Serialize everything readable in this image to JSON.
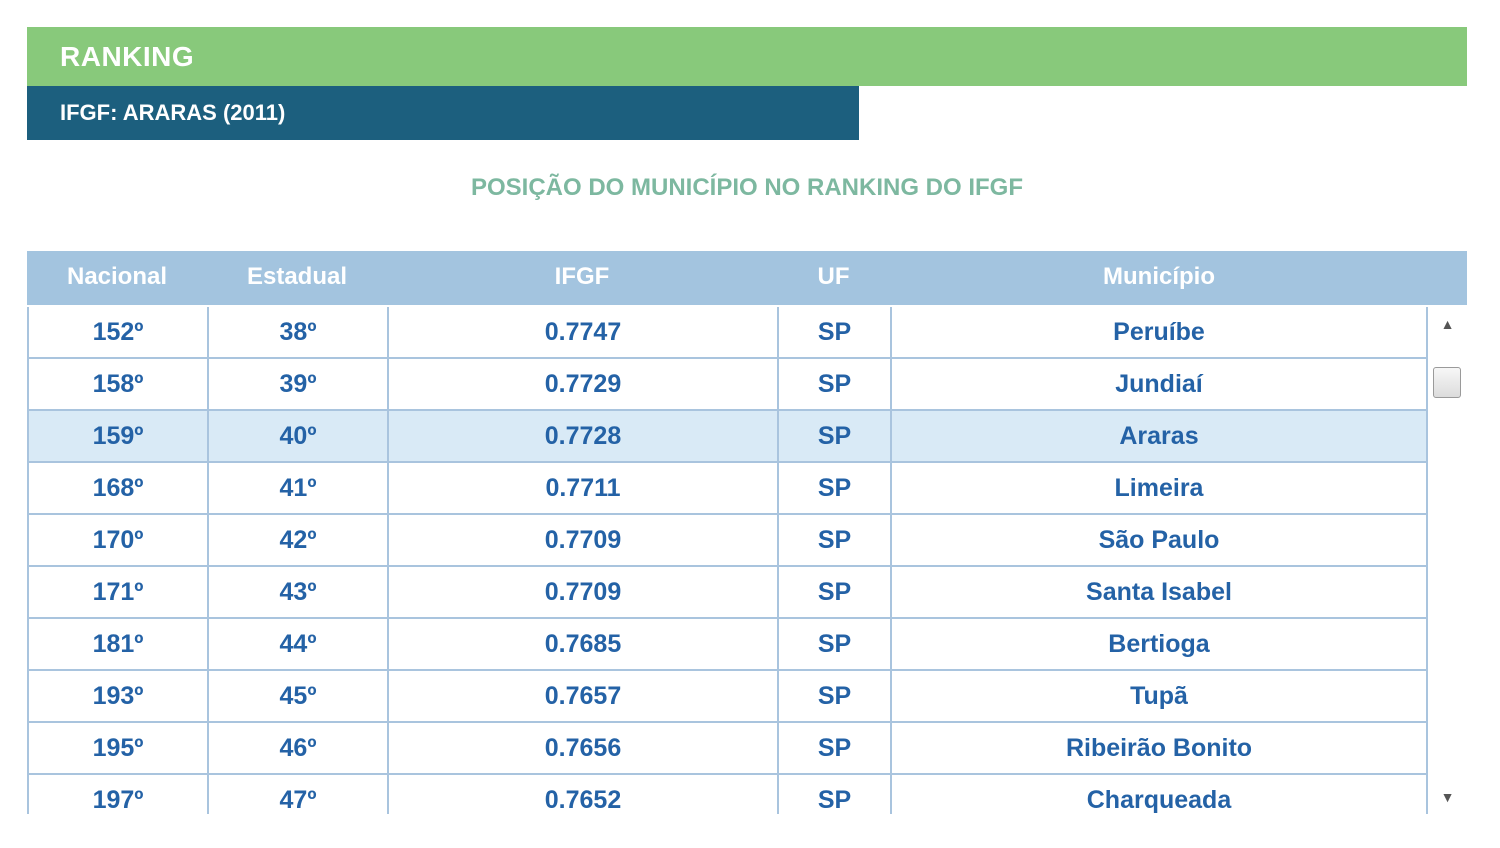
{
  "header": {
    "title": "RANKING",
    "subtitle": "IFGF: ARARAS (2011)"
  },
  "section_title": "POSIÇÃO DO MUNICÍPIO NO RANKING DO IFGF",
  "table": {
    "columns": [
      "Nacional",
      "Estadual",
      "IFGF",
      "UF",
      "Município"
    ],
    "highlighted_row": 2,
    "rows": [
      [
        "152º",
        "38º",
        "0.7747",
        "SP",
        "Peruíbe"
      ],
      [
        "158º",
        "39º",
        "0.7729",
        "SP",
        "Jundiaí"
      ],
      [
        "159º",
        "40º",
        "0.7728",
        "SP",
        "Araras"
      ],
      [
        "168º",
        "41º",
        "0.7711",
        "SP",
        "Limeira"
      ],
      [
        "170º",
        "42º",
        "0.7709",
        "SP",
        "São Paulo"
      ],
      [
        "171º",
        "43º",
        "0.7709",
        "SP",
        "Santa Isabel"
      ],
      [
        "181º",
        "44º",
        "0.7685",
        "SP",
        "Bertioga"
      ],
      [
        "193º",
        "45º",
        "0.7657",
        "SP",
        "Tupã"
      ],
      [
        "195º",
        "46º",
        "0.7656",
        "SP",
        "Ribeirão Bonito"
      ],
      [
        "197º",
        "47º",
        "0.7652",
        "SP",
        "Charqueada"
      ]
    ]
  },
  "colors": {
    "green_header": "#88c97b",
    "blue_header": "#1c5f7e",
    "table_header": "#a3c4df",
    "highlight_row": "#d9eaf6",
    "cell_text": "#2462a6",
    "section_title": "#7db8a0"
  },
  "icons": {
    "scroll_up": "triangle-up-icon",
    "scroll_down": "triangle-down-icon"
  }
}
